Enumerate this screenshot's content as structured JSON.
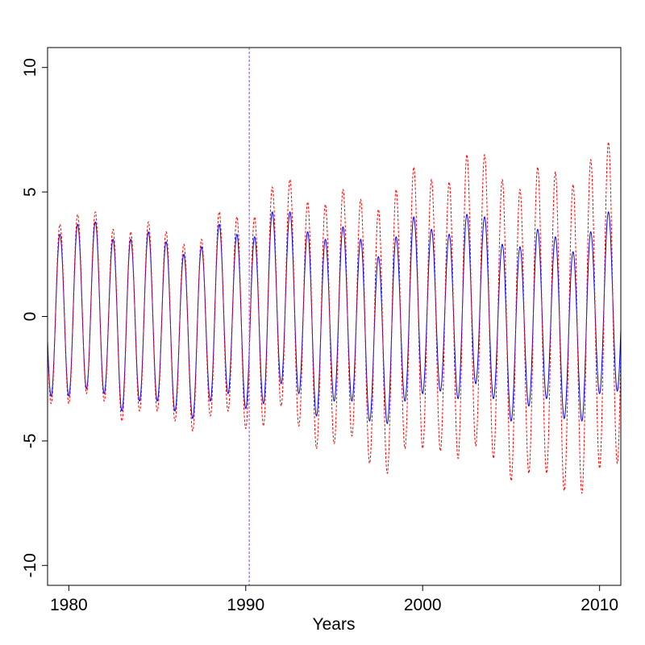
{
  "chart_data": {
    "type": "line",
    "title": "",
    "xlabel": "Years",
    "ylabel": "",
    "xlim": [
      1978.8,
      2011.2
    ],
    "ylim": [
      -10.8,
      10.8
    ],
    "x_ticks": [
      1980,
      1990,
      2000,
      2010
    ],
    "x_tick_labels": [
      "1980",
      "1990",
      "2000",
      "2010"
    ],
    "y_ticks": [
      -10,
      -5,
      0,
      5,
      10
    ],
    "y_tick_labels": [
      "-10",
      "-5",
      "0",
      "5",
      "10"
    ],
    "grid": false,
    "legend": "none",
    "vertical_line": {
      "x": 1990.2,
      "color": "#b066ff",
      "style": "dashed"
    },
    "series": [
      {
        "color": "#0000ff",
        "style": "solid",
        "years": [
          1979,
          1980,
          1981,
          1982,
          1983,
          1984,
          1985,
          1986,
          1987,
          1988,
          1989,
          1990,
          1991,
          1992,
          1993,
          1994,
          1995,
          1996,
          1997,
          1998,
          1999,
          2000,
          2001,
          2002,
          2003,
          2004,
          2005,
          2006,
          2007,
          2008,
          2009,
          2010
        ],
        "peaks": [
          3.3,
          3.7,
          3.8,
          3.1,
          3.1,
          3.4,
          3.0,
          2.5,
          2.8,
          3.7,
          3.3,
          3.2,
          4.2,
          4.2,
          3.4,
          3.1,
          3.6,
          3.1,
          2.4,
          3.2,
          4.0,
          3.5,
          3.3,
          4.1,
          4.0,
          2.9,
          2.8,
          3.5,
          3.2,
          2.6,
          3.4,
          4.2
        ],
        "troughs": [
          -3.2,
          -2.9,
          -3.1,
          -3.8,
          -3.4,
          -3.4,
          -3.8,
          -4.1,
          -3.4,
          -3.1,
          -3.7,
          -3.5,
          -2.7,
          -3.1,
          -4.0,
          -3.4,
          -3.4,
          -4.2,
          -4.3,
          -3.4,
          -3.1,
          -3.0,
          -3.3,
          -2.7,
          -3.3,
          -4.2,
          -3.6,
          -3.3,
          -4.1,
          -4.2,
          -3.1,
          -3.0
        ]
      },
      {
        "color": "#ff0000",
        "style": "dashed",
        "years": [
          1979,
          1980,
          1981,
          1982,
          1983,
          1984,
          1985,
          1986,
          1987,
          1988,
          1989,
          1990,
          1991,
          1992,
          1993,
          1994,
          1995,
          1996,
          1997,
          1998,
          1999,
          2000,
          2001,
          2002,
          2003,
          2004,
          2005,
          2006,
          2007,
          2008,
          2009,
          2010
        ],
        "peaks": [
          3.7,
          4.1,
          4.2,
          3.5,
          3.4,
          3.8,
          3.4,
          2.9,
          3.1,
          4.2,
          4.0,
          4.0,
          5.2,
          5.5,
          4.6,
          4.5,
          5.1,
          4.7,
          4.3,
          5.1,
          6.0,
          5.5,
          5.4,
          6.5,
          6.5,
          5.5,
          5.1,
          6.0,
          5.8,
          5.3,
          6.3,
          7.0
        ],
        "troughs": [
          -3.5,
          -3.1,
          -3.4,
          -4.2,
          -3.8,
          -3.8,
          -4.2,
          -4.6,
          -4.0,
          -3.8,
          -4.5,
          -4.4,
          -3.6,
          -4.4,
          -5.3,
          -5.1,
          -4.8,
          -5.9,
          -6.3,
          -5.3,
          -5.3,
          -5.4,
          -5.7,
          -5.2,
          -5.7,
          -6.6,
          -6.3,
          -6.3,
          -7.0,
          -7.1,
          -6.1,
          -5.9
        ]
      }
    ]
  }
}
